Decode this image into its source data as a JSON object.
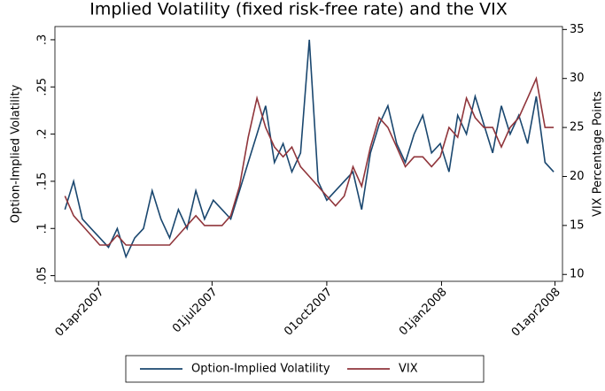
{
  "chart_data": {
    "type": "line",
    "title": "Implied Volatility (fixed risk-free rate) and the VIX",
    "y_label": "Option-Implied Volatility",
    "y2_label": "VIX Percentage Points",
    "x": [
      "2007-03-05",
      "2007-03-12",
      "2007-03-19",
      "2007-03-26",
      "2007-04-02",
      "2007-04-09",
      "2007-04-16",
      "2007-04-23",
      "2007-04-30",
      "2007-05-07",
      "2007-05-14",
      "2007-05-21",
      "2007-05-28",
      "2007-06-04",
      "2007-06-11",
      "2007-06-18",
      "2007-06-25",
      "2007-07-02",
      "2007-07-09",
      "2007-07-16",
      "2007-07-23",
      "2007-07-30",
      "2007-08-06",
      "2007-08-13",
      "2007-08-20",
      "2007-08-27",
      "2007-09-03",
      "2007-09-10",
      "2007-09-17",
      "2007-09-24",
      "2007-10-01",
      "2007-10-08",
      "2007-10-15",
      "2007-10-22",
      "2007-10-29",
      "2007-11-05",
      "2007-11-12",
      "2007-11-19",
      "2007-11-26",
      "2007-12-03",
      "2007-12-10",
      "2007-12-17",
      "2007-12-24",
      "2007-12-31",
      "2008-01-07",
      "2008-01-14",
      "2008-01-21",
      "2008-01-28",
      "2008-02-04",
      "2008-02-11",
      "2008-02-18",
      "2008-02-25",
      "2008-03-03",
      "2008-03-10",
      "2008-03-17",
      "2008-03-24",
      "2008-03-31"
    ],
    "series": [
      {
        "name": "Option-Implied Volatility",
        "color": "#1a476f",
        "axis": "y",
        "values": [
          0.12,
          0.15,
          0.11,
          0.1,
          0.09,
          0.08,
          0.1,
          0.07,
          0.09,
          0.1,
          0.14,
          0.11,
          0.09,
          0.12,
          0.1,
          0.14,
          0.11,
          0.13,
          0.12,
          0.11,
          0.14,
          0.17,
          0.2,
          0.23,
          0.17,
          0.19,
          0.16,
          0.18,
          0.3,
          0.15,
          0.13,
          0.14,
          0.15,
          0.16,
          0.12,
          0.18,
          0.21,
          0.23,
          0.19,
          0.17,
          0.2,
          0.22,
          0.18,
          0.19,
          0.16,
          0.22,
          0.2,
          0.24,
          0.21,
          0.18,
          0.23,
          0.2,
          0.22,
          0.19,
          0.24,
          0.17,
          0.16
        ]
      },
      {
        "name": "VIX",
        "color": "#90353b",
        "axis": "y2",
        "values": [
          18,
          16,
          15,
          14,
          13,
          13,
          14,
          13,
          13,
          13,
          13,
          13,
          13,
          14,
          15,
          16,
          15,
          15,
          15,
          16,
          19,
          24,
          28,
          25,
          23,
          22,
          23,
          21,
          20,
          19,
          18,
          17,
          18,
          21,
          19,
          23,
          26,
          25,
          23,
          21,
          22,
          22,
          21,
          22,
          25,
          24,
          28,
          26,
          25,
          25,
          23,
          25,
          26,
          28,
          30,
          25,
          25
        ]
      }
    ],
    "xlim": [
      "2007-02-25",
      "2008-04-07"
    ],
    "xticks": [
      {
        "value": "2007-04-01",
        "label": "01apr2007"
      },
      {
        "value": "2007-07-01",
        "label": "01jul2007"
      },
      {
        "value": "2007-10-01",
        "label": "01oct2007"
      },
      {
        "value": "2008-01-01",
        "label": "01jan2008"
      },
      {
        "value": "2008-04-01",
        "label": "01apr2008"
      }
    ],
    "ylim": [
      0.044,
      0.314
    ],
    "yticks": [
      {
        "value": 0.05,
        "label": ".05"
      },
      {
        "value": 0.1,
        "label": ".1"
      },
      {
        "value": 0.15,
        "label": ".15"
      },
      {
        "value": 0.2,
        "label": ".2"
      },
      {
        "value": 0.25,
        "label": ".25"
      },
      {
        "value": 0.3,
        "label": ".3"
      }
    ],
    "y2lim": [
      9.3,
      35.3
    ],
    "y2ticks": [
      10,
      15,
      20,
      25,
      30,
      35
    ],
    "legend": "bottom"
  }
}
